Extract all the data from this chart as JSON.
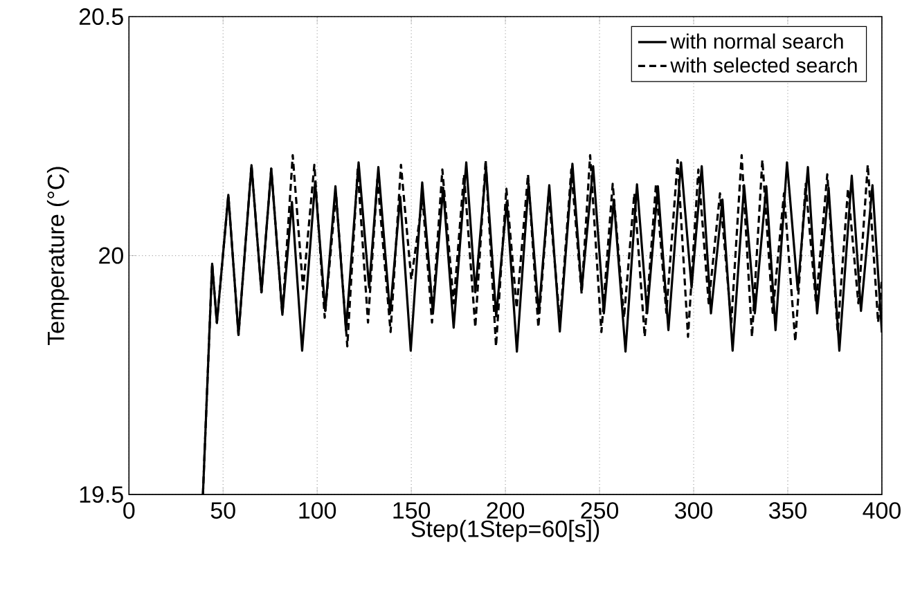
{
  "chart_data": {
    "type": "line",
    "xlabel": "Step(1Step=60[s])",
    "ylabel": "Temperature (°C)",
    "xlim": [
      0,
      400
    ],
    "xticks": [
      0,
      50,
      100,
      150,
      200,
      250,
      300,
      350,
      400
    ],
    "ylim": [
      19.5,
      20.5
    ],
    "yticks": [
      19.5,
      20,
      20.5
    ],
    "grid": true,
    "legend": "top right",
    "series": [
      {
        "name": "with normal search",
        "color": "#000000",
        "line_style": "solid",
        "x": [
          39.3,
          44.2,
          46.7,
          52.8,
          58.2,
          65.1,
          70.4,
          75.6,
          81.5,
          86.6,
          92.0,
          98.9,
          104.3,
          109.7,
          115.3,
          122.0,
          127.6,
          132.5,
          138.7,
          144.1,
          149.7,
          155.8,
          161.5,
          166.9,
          172.5,
          179.2,
          184.0,
          189.7,
          195.1,
          200.7,
          206.1,
          212.3,
          217.7,
          223.3,
          228.9,
          235.6,
          240.5,
          246.6,
          252.3,
          257.6,
          263.8,
          269.9,
          275.3,
          281.0,
          286.6,
          293.3,
          298.9,
          304.3,
          309.2,
          315.3,
          320.7,
          326.8,
          332.5,
          338.6,
          343.5,
          349.6,
          355.3,
          360.7,
          365.6,
          371.7,
          377.4,
          384.0,
          388.9,
          395.0,
          400
        ],
        "values": [
          19.5,
          19.983,
          19.859,
          20.127,
          19.834,
          20.189,
          19.923,
          20.182,
          19.876,
          20.112,
          19.801,
          20.153,
          19.884,
          20.145,
          19.844,
          20.195,
          19.933,
          20.185,
          19.879,
          20.123,
          19.801,
          20.153,
          19.879,
          20.142,
          19.849,
          20.195,
          19.923,
          20.185,
          19.873,
          20.112,
          19.799,
          20.152,
          19.879,
          20.147,
          19.841,
          20.192,
          19.928,
          20.187,
          19.879,
          20.117,
          19.799,
          20.149,
          19.879,
          20.145,
          19.844,
          20.195,
          19.933,
          20.187,
          19.879,
          20.117,
          19.801,
          20.147,
          19.879,
          20.145,
          19.844,
          20.195,
          19.928,
          20.185,
          19.879,
          20.142,
          19.801,
          20.167,
          19.884,
          20.147,
          19.839
        ]
      },
      {
        "name": "with selected search",
        "color": "#000000",
        "line_style": "dashed",
        "x": [
          39.3,
          44.2,
          46.7,
          52.8,
          58.2,
          65.1,
          70.4,
          75.6,
          81.5,
          87,
          92.5,
          98.5,
          104,
          110,
          116,
          121.5,
          127,
          132,
          139,
          144.5,
          150,
          156,
          161,
          166.5,
          172.5,
          178,
          184,
          189.5,
          195,
          200.5,
          206,
          212,
          217.5,
          223,
          229,
          235,
          240.5,
          245,
          251,
          257,
          263,
          268.5,
          274,
          280,
          285.5,
          291.5,
          297,
          302.5,
          308,
          314,
          320,
          325.5,
          331,
          336.5,
          342,
          348,
          354,
          359.5,
          365,
          371,
          376.5,
          382,
          387.5,
          392.5,
          398,
          400
        ],
        "values": [
          19.5,
          19.983,
          19.859,
          20.127,
          19.834,
          20.189,
          19.923,
          20.182,
          19.876,
          20.21,
          19.93,
          20.19,
          19.87,
          20.13,
          19.81,
          20.18,
          19.86,
          20.16,
          19.84,
          20.19,
          19.95,
          20.12,
          19.86,
          20.18,
          19.9,
          20.17,
          19.85,
          20.2,
          19.81,
          20.14,
          19.89,
          20.17,
          19.85,
          20.13,
          19.86,
          20.18,
          19.92,
          20.21,
          19.84,
          20.15,
          19.87,
          20.13,
          19.83,
          20.15,
          19.88,
          20.2,
          19.83,
          20.18,
          19.9,
          20.13,
          19.86,
          20.21,
          19.83,
          20.2,
          19.88,
          20.13,
          19.82,
          20.15,
          19.9,
          20.17,
          19.84,
          20.14,
          19.9,
          20.19,
          19.86,
          19.95
        ]
      }
    ]
  }
}
